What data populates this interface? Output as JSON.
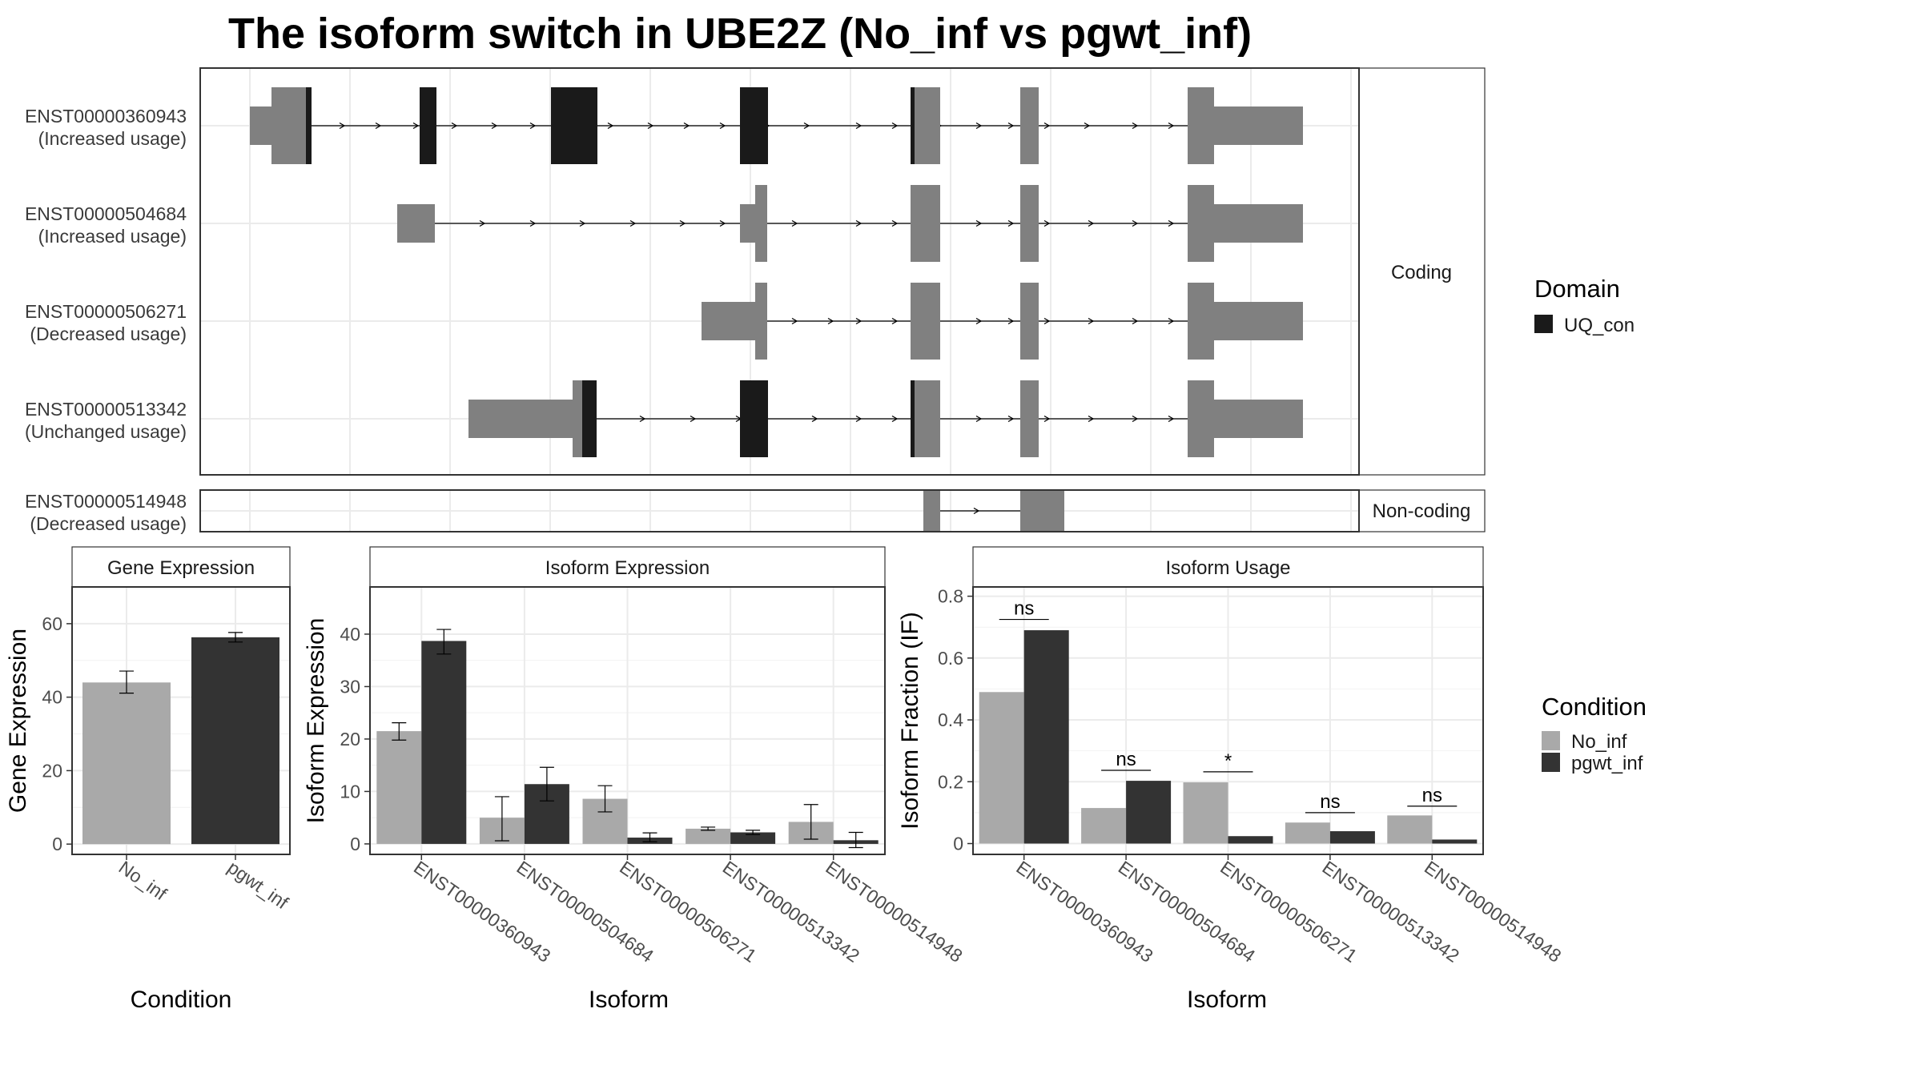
{
  "title": "The isoform switch in UBE2Z (No_inf vs pgwt_inf)",
  "colors": {
    "exon": "#808080",
    "domain": "#1a1a1a",
    "no_inf": "#a9a9a9",
    "pgwt_inf": "#333333",
    "grid": "#ebebeb",
    "panel_border": "#333333"
  },
  "structure": {
    "strips": {
      "coding": "Coding",
      "noncoding": "Non-coding"
    },
    "transcripts": [
      {
        "id": "ENST00000360943",
        "note": "(Increased usage)",
        "group": "coding"
      },
      {
        "id": "ENST00000504684",
        "note": "(Increased usage)",
        "group": "coding"
      },
      {
        "id": "ENST00000506271",
        "note": "(Decreased usage)",
        "group": "coding"
      },
      {
        "id": "ENST00000513342",
        "note": "(Unchanged usage)",
        "group": "coding"
      },
      {
        "id": "ENST00000514948",
        "note": "(Decreased usage)",
        "group": "noncoding"
      }
    ]
  },
  "legends": {
    "domain": {
      "title": "Domain",
      "items": [
        {
          "label": "UQ_con",
          "color_key": "domain"
        }
      ]
    },
    "condition": {
      "title": "Condition",
      "items": [
        {
          "label": "No_inf",
          "color_key": "no_inf"
        },
        {
          "label": "pgwt_inf",
          "color_key": "pgwt_inf"
        }
      ]
    }
  },
  "chart_data": [
    {
      "type": "bar",
      "title": "Gene Expression",
      "xlabel": "Condition",
      "ylabel": "Gene Expression",
      "categories": [
        "No_inf",
        "pgwt_inf"
      ],
      "values": [
        44,
        56.3
      ],
      "error": [
        [
          41.1,
          47.1
        ],
        [
          55.0,
          57.6
        ]
      ],
      "ylim": [
        -2.8,
        70
      ],
      "yticks": [
        0,
        20,
        40,
        60
      ]
    },
    {
      "type": "bar",
      "title": "Isoform Expression",
      "xlabel": "Isoform",
      "ylabel": "Isoform Expression",
      "categories": [
        "ENST00000360943",
        "ENST00000504684",
        "ENST00000506271",
        "ENST00000513342",
        "ENST00000514948"
      ],
      "series": [
        {
          "name": "No_inf",
          "values": [
            21.5,
            5.0,
            8.6,
            2.9,
            4.2
          ],
          "error": [
            [
              19.8,
              23.1
            ],
            [
              0.6,
              9.0
            ],
            [
              6.1,
              11.1
            ],
            [
              2.6,
              3.2
            ],
            [
              0.9,
              7.5
            ]
          ]
        },
        {
          "name": "pgwt_inf",
          "values": [
            38.7,
            11.4,
            1.2,
            2.2,
            0.7
          ],
          "error": [
            [
              36.2,
              40.9
            ],
            [
              8.2,
              14.6
            ],
            [
              0.4,
              2.1
            ],
            [
              1.8,
              2.6
            ],
            [
              -0.7,
              2.2
            ]
          ]
        }
      ],
      "ylim": [
        -2.0,
        49
      ],
      "yticks": [
        0,
        10,
        20,
        30,
        40
      ]
    },
    {
      "type": "bar",
      "title": "Isoform Usage",
      "xlabel": "Isoform",
      "ylabel": "Isoform Fraction (IF)",
      "categories": [
        "ENST00000360943",
        "ENST00000504684",
        "ENST00000506271",
        "ENST00000513342",
        "ENST00000514948"
      ],
      "series": [
        {
          "name": "No_inf",
          "values": [
            0.49,
            0.115,
            0.198,
            0.068,
            0.091
          ]
        },
        {
          "name": "pgwt_inf",
          "values": [
            0.69,
            0.203,
            0.024,
            0.04,
            0.013
          ]
        }
      ],
      "significance": [
        "ns",
        "ns",
        "*",
        "ns",
        "ns"
      ],
      "sig_y": [
        0.725,
        0.237,
        0.232,
        0.1,
        0.121
      ],
      "ylim": [
        -0.035,
        0.83
      ],
      "yticks": [
        0.0,
        0.2,
        0.4,
        0.6,
        0.8
      ]
    }
  ]
}
